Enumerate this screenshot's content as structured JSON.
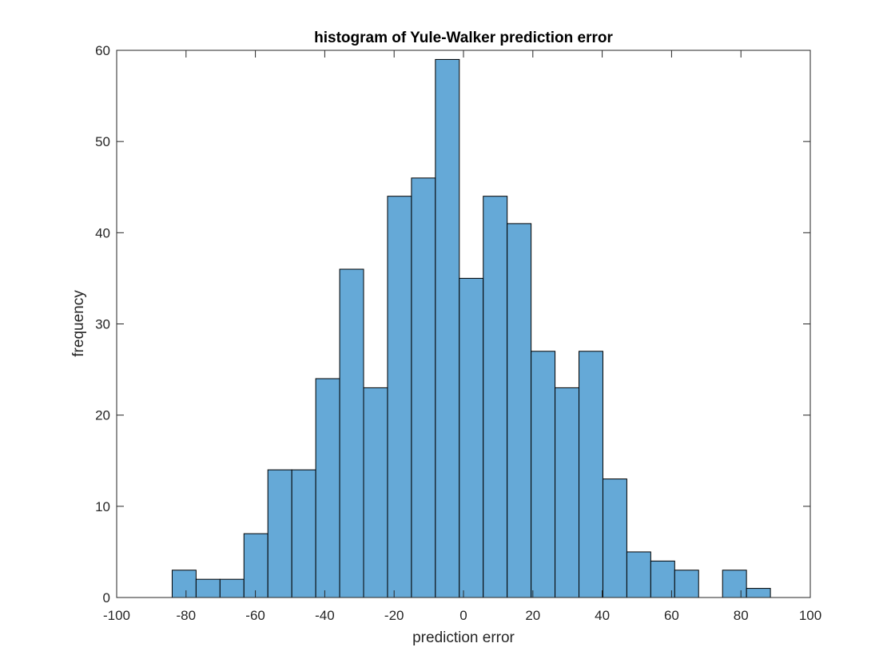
{
  "chart_data": {
    "type": "bar",
    "title": "histogram of Yule-Walker prediction error",
    "xlabel": "prediction error",
    "ylabel": "frequency",
    "xlim": [
      -100,
      100
    ],
    "ylim": [
      0,
      60
    ],
    "xticks": [
      -100,
      -80,
      -60,
      -40,
      -20,
      0,
      20,
      40,
      60,
      80,
      100
    ],
    "yticks": [
      0,
      10,
      20,
      30,
      40,
      50,
      60
    ],
    "grid": false,
    "bar_color": "#65A9D7",
    "edge_color": "#000000",
    "bin_edges": [
      -84.0,
      -77.1,
      -70.2,
      -63.3,
      -56.4,
      -49.5,
      -42.6,
      -35.7,
      -28.8,
      -21.9,
      -15.0,
      -8.1,
      -1.2,
      5.7,
      12.6,
      19.5,
      26.4,
      33.3,
      40.2,
      47.1,
      54.0,
      60.9,
      67.8,
      74.7,
      81.6,
      88.5
    ],
    "counts": [
      3,
      2,
      2,
      7,
      14,
      14,
      24,
      36,
      23,
      44,
      46,
      59,
      35,
      44,
      41,
      27,
      23,
      27,
      13,
      5,
      4,
      3,
      0,
      3,
      1
    ]
  }
}
